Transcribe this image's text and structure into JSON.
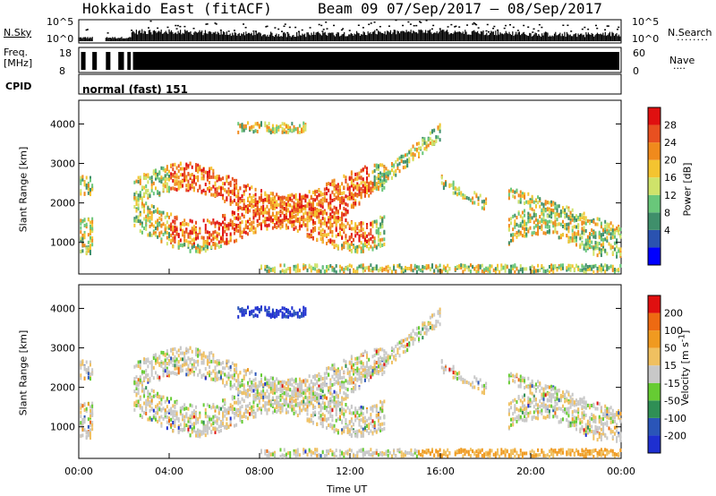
{
  "header": {
    "title": "Hokkaido East (fitACF)",
    "beam": "Beam 09",
    "date_range": "07/Sep/2017 – 08/Sep/2017"
  },
  "top_panels": {
    "nsky_label": "N.Sky",
    "nsearch_label": "N.Search",
    "nsky_ticks": [
      "10^5",
      "10^0"
    ],
    "nsearch_ticks": [
      "10^5",
      "10^0"
    ],
    "freq_label_line1": "Freq.",
    "freq_label_line2": "[MHz]",
    "freq_ticks": [
      "18",
      "8"
    ],
    "nave_label": "Nave",
    "nave_ticks": [
      "60",
      "0"
    ],
    "cpid_label": "CPID",
    "cpid_value": "normal (fast) 151"
  },
  "colors": {
    "power_scale": [
      "#0000ff",
      "#2a52b0",
      "#3f8f6b",
      "#69c77a",
      "#cfe36a",
      "#f4c430",
      "#f08a1c",
      "#e85020",
      "#e01010"
    ],
    "velocity_scale": [
      "#1e2fd0",
      "#2a55b8",
      "#2f8f55",
      "#66cc33",
      "#c8c8c8",
      "#f0c060",
      "#f09a20",
      "#ee6a12",
      "#e01010"
    ]
  },
  "chart_data": [
    {
      "type": "heatmap",
      "name": "power",
      "ylabel": "Slant Range [km]",
      "xlabel": "",
      "yticks": [
        1000,
        2000,
        3000,
        4000
      ],
      "ylim": [
        200,
        4600
      ],
      "xlim": [
        0,
        24
      ],
      "colorbar_label": "Power [dB]",
      "colorbar_ticks": [
        "28",
        "24",
        "20",
        "16",
        "12",
        "8",
        "4"
      ]
    },
    {
      "type": "heatmap",
      "name": "velocity",
      "ylabel": "Slant Range [km]",
      "xlabel": "Time UT",
      "yticks": [
        1000,
        2000,
        3000,
        4000
      ],
      "ylim": [
        200,
        4600
      ],
      "xlim": [
        0,
        24
      ],
      "xticks": [
        "00:00",
        "04:00",
        "08:00",
        "12:00",
        "16:00",
        "20:00",
        "00:00"
      ],
      "colorbar_label": "Velocity [m s^-1]",
      "colorbar_ticks": [
        "200",
        "100",
        "50",
        "15",
        "-15",
        "-50",
        "-100",
        "-200"
      ]
    }
  ]
}
